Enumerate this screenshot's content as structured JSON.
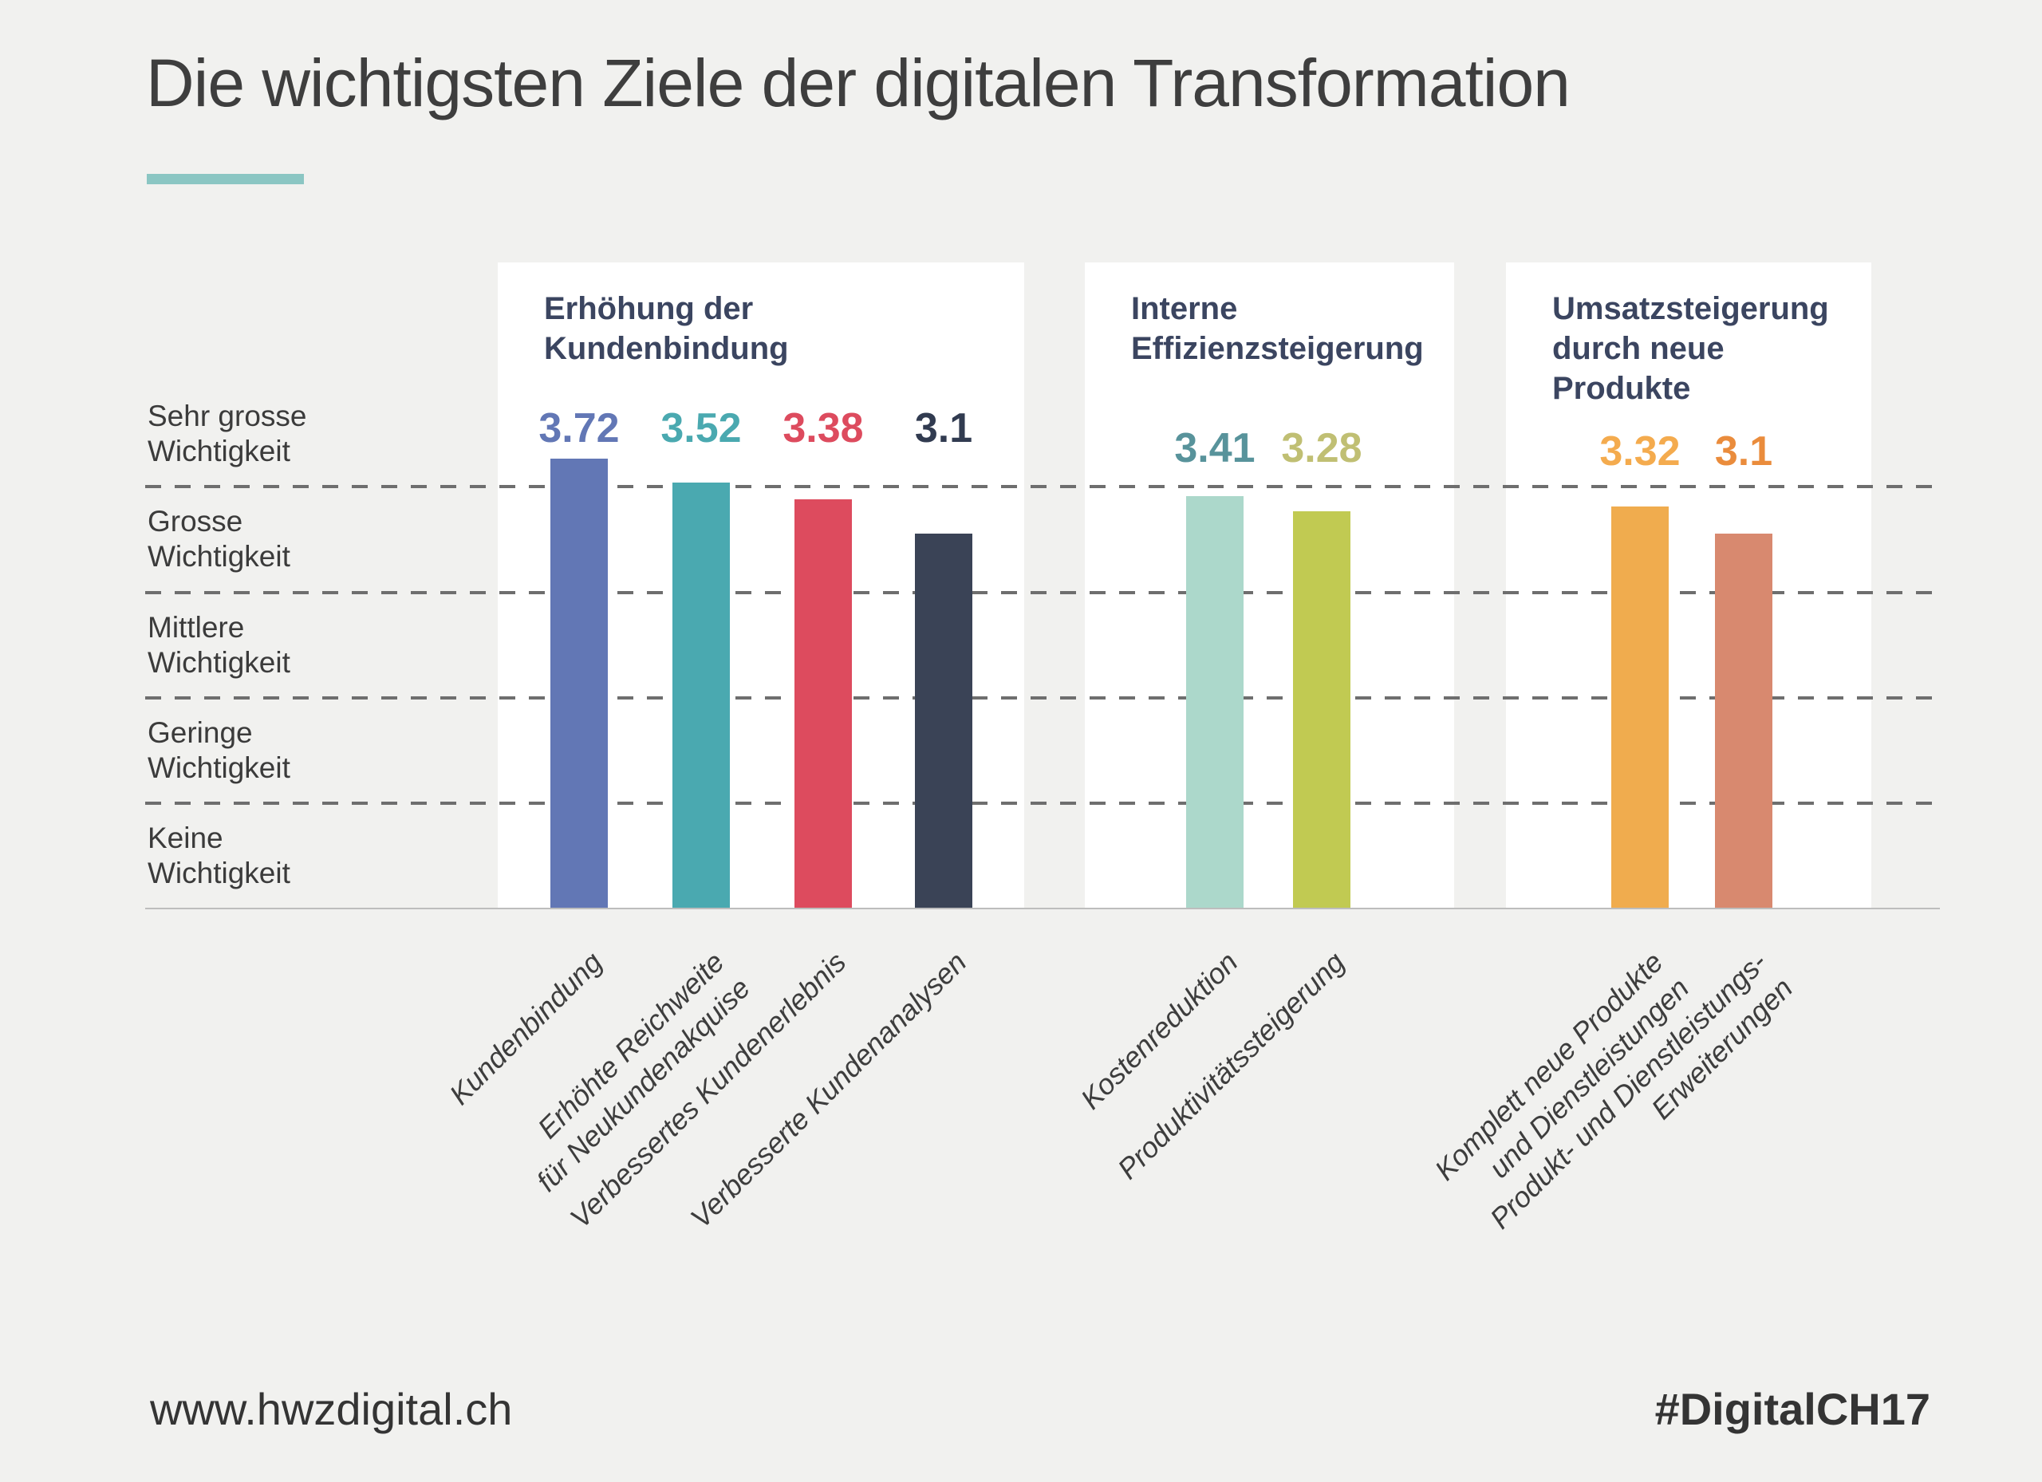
{
  "title": "Die wichtigsten Ziele der digitalen Transformation",
  "footer": {
    "left": "www.hwzdigital.ch",
    "right": "#DigitalCH17"
  },
  "colors": {
    "background": "#f1f1ef",
    "panel": "#ffffff",
    "accent": "#8bc6c3",
    "title_text": "#3e3e3e",
    "group_title_text": "#3b4560",
    "axis_text": "#3b3b3b",
    "grid_dash": "#6e6e6e",
    "baseline": "#bdbdbd",
    "footer_bg": "#ffffff"
  },
  "chart_data": {
    "type": "bar",
    "title": "Die wichtigsten Ziele der digitalen Transformation",
    "xlabel": "",
    "ylabel": "",
    "ylim": [
      0,
      4
    ],
    "grid": "horizontal dashed lines",
    "legend": "none",
    "y_axis_labels": [
      "Sehr grosse\nWichtigkeit",
      "Grosse\nWichtigkeit",
      "Mittlere\nWichtigkeit",
      "Geringe\nWichtigkeit",
      "Keine\nWichtigkeit"
    ],
    "groups": [
      {
        "title": "Erhöhung der\nKundenbindung",
        "bars": [
          {
            "label": "Kundenbindung",
            "value": 3.72,
            "bar_color": "#6277b5",
            "value_color": "#6277b5"
          },
          {
            "label": "Erhöhte Reichweite\nfür Neukundenakquise",
            "value": 3.52,
            "bar_color": "#4aa9b0",
            "value_color": "#4aa9b0"
          },
          {
            "label": "Verbessertes Kundenerlebnis",
            "value": 3.38,
            "bar_color": "#dd4b5e",
            "value_color": "#dd4b5e"
          },
          {
            "label": "Verbesserte Kundenanalysen",
            "value": 3.1,
            "bar_color": "#3a4356",
            "value_color": "#313b50"
          }
        ]
      },
      {
        "title": "Interne\nEffizienzsteigerung",
        "bars": [
          {
            "label": "Kostenreduktion",
            "value": 3.41,
            "bar_color": "#acd8cb",
            "value_color": "#58939b"
          },
          {
            "label": "Produktivitätssteigerung",
            "value": 3.28,
            "bar_color": "#c1ca52",
            "value_color": "#c0bf73"
          }
        ]
      },
      {
        "title": "Umsatzsteigerung\ndurch neue Produkte",
        "bars": [
          {
            "label": "Komplett neue Produkte\nund Dienstleistungen",
            "value": 3.32,
            "bar_color": "#f0ac4e",
            "value_color": "#f4ab4e"
          },
          {
            "label": "Produkt- und Dienstleistungs-\nErweiterungen",
            "value": 3.1,
            "bar_color": "#d8896f",
            "value_color": "#ea8c3c"
          }
        ]
      }
    ]
  }
}
